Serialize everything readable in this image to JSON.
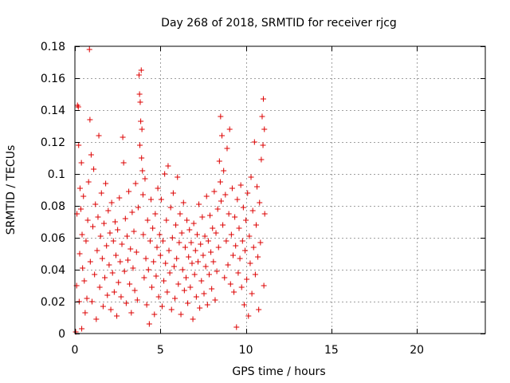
{
  "chart_data": {
    "type": "scatter",
    "title": "Day 268 of 2018, SRMTID for receiver rjcg",
    "xlabel": "GPS time / hours",
    "ylabel": "SRMTID / TECUs",
    "xlim": [
      0,
      24
    ],
    "ylim": [
      0,
      0.18
    ],
    "xticks": [
      0,
      5,
      10,
      15,
      20
    ],
    "xtick_labels": [
      "0",
      "5",
      "10",
      "15",
      "20"
    ],
    "yticks": [
      0,
      0.02,
      0.04,
      0.06,
      0.08,
      0.1,
      0.12,
      0.14,
      0.16,
      0.18
    ],
    "ytick_labels": [
      "0",
      "0.02",
      "0.04",
      "0.06",
      "0.08",
      "0.1",
      "0.12",
      "0.14",
      "0.16",
      "0.18"
    ],
    "grid": true,
    "marker": "+",
    "color": "#dd0000",
    "series": [
      {
        "name": "SRMTID",
        "points": [
          [
            0.05,
            0.001
          ],
          [
            0.1,
            0.03
          ],
          [
            0.12,
            0.075
          ],
          [
            0.15,
            0.143
          ],
          [
            0.2,
            0.142
          ],
          [
            0.22,
            0.118
          ],
          [
            0.25,
            0.02
          ],
          [
            0.28,
            0.05
          ],
          [
            0.3,
            0.091
          ],
          [
            0.35,
            0.078
          ],
          [
            0.38,
            0.107
          ],
          [
            0.4,
            0.003
          ],
          [
            0.42,
            0.062
          ],
          [
            0.45,
            0.041
          ],
          [
            0.5,
            0.086
          ],
          [
            0.55,
            0.033
          ],
          [
            0.6,
            0.013
          ],
          [
            0.65,
            0.058
          ],
          [
            0.7,
            0.022
          ],
          [
            0.75,
            0.071
          ],
          [
            0.8,
            0.095
          ],
          [
            0.85,
            0.178
          ],
          [
            0.88,
            0.134
          ],
          [
            0.9,
            0.045
          ],
          [
            0.95,
            0.112
          ],
          [
            1.0,
            0.02
          ],
          [
            1.05,
            0.067
          ],
          [
            1.1,
            0.103
          ],
          [
            1.15,
            0.037
          ],
          [
            1.2,
            0.081
          ],
          [
            1.25,
            0.009
          ],
          [
            1.3,
            0.052
          ],
          [
            1.35,
            0.073
          ],
          [
            1.4,
            0.124
          ],
          [
            1.45,
            0.029
          ],
          [
            1.5,
            0.061
          ],
          [
            1.55,
            0.088
          ],
          [
            1.6,
            0.047
          ],
          [
            1.65,
            0.017
          ],
          [
            1.7,
            0.069
          ],
          [
            1.75,
            0.035
          ],
          [
            1.8,
            0.094
          ],
          [
            1.85,
            0.055
          ],
          [
            1.9,
            0.024
          ],
          [
            1.95,
            0.077
          ],
          [
            2.0,
            0.043
          ],
          [
            2.05,
            0.063
          ],
          [
            2.1,
            0.015
          ],
          [
            2.15,
            0.082
          ],
          [
            2.2,
            0.038
          ],
          [
            2.25,
            0.058
          ],
          [
            2.3,
            0.026
          ],
          [
            2.35,
            0.07
          ],
          [
            2.4,
            0.049
          ],
          [
            2.45,
            0.011
          ],
          [
            2.5,
            0.065
          ],
          [
            2.55,
            0.032
          ],
          [
            2.6,
            0.085
          ],
          [
            2.65,
            0.045
          ],
          [
            2.7,
            0.023
          ],
          [
            2.75,
            0.056
          ],
          [
            2.8,
            0.123
          ],
          [
            2.85,
            0.107
          ],
          [
            2.9,
            0.039
          ],
          [
            2.95,
            0.072
          ],
          [
            3.0,
            0.019
          ],
          [
            3.05,
            0.061
          ],
          [
            3.1,
            0.046
          ],
          [
            3.15,
            0.089
          ],
          [
            3.2,
            0.031
          ],
          [
            3.25,
            0.053
          ],
          [
            3.3,
            0.013
          ],
          [
            3.35,
            0.076
          ],
          [
            3.4,
            0.041
          ],
          [
            3.45,
            0.064
          ],
          [
            3.5,
            0.027
          ],
          [
            3.55,
            0.094
          ],
          [
            3.6,
            0.051
          ],
          [
            3.65,
            0.021
          ],
          [
            3.7,
            0.079
          ],
          [
            3.75,
            0.162
          ],
          [
            3.78,
            0.15
          ],
          [
            3.8,
            0.118
          ],
          [
            3.82,
            0.145
          ],
          [
            3.85,
            0.133
          ],
          [
            3.88,
            0.165
          ],
          [
            3.9,
            0.11
          ],
          [
            3.92,
            0.128
          ],
          [
            3.95,
            0.102
          ],
          [
            3.98,
            0.087
          ],
          [
            4.0,
            0.062
          ],
          [
            4.05,
            0.035
          ],
          [
            4.1,
            0.097
          ],
          [
            4.15,
            0.047
          ],
          [
            4.2,
            0.018
          ],
          [
            4.25,
            0.071
          ],
          [
            4.3,
            0.04
          ],
          [
            4.35,
            0.006
          ],
          [
            4.4,
            0.058
          ],
          [
            4.45,
            0.084
          ],
          [
            4.5,
            0.029
          ],
          [
            4.55,
            0.066
          ],
          [
            4.6,
            0.045
          ],
          [
            4.65,
            0.012
          ],
          [
            4.7,
            0.075
          ],
          [
            4.75,
            0.036
          ],
          [
            4.8,
            0.054
          ],
          [
            4.85,
            0.091
          ],
          [
            4.9,
            0.023
          ],
          [
            4.95,
            0.062
          ],
          [
            5.0,
            0.049
          ],
          [
            5.05,
            0.084
          ],
          [
            5.1,
            0.017
          ],
          [
            5.15,
            0.058
          ],
          [
            5.2,
            0.033
          ],
          [
            5.25,
            0.1
          ],
          [
            5.3,
            0.044
          ],
          [
            5.35,
            0.071
          ],
          [
            5.4,
            0.026
          ],
          [
            5.45,
            0.105
          ],
          [
            5.5,
            0.052
          ],
          [
            5.55,
            0.038
          ],
          [
            5.6,
            0.079
          ],
          [
            5.65,
            0.015
          ],
          [
            5.7,
            0.06
          ],
          [
            5.75,
            0.088
          ],
          [
            5.8,
            0.042
          ],
          [
            5.85,
            0.022
          ],
          [
            5.9,
            0.068
          ],
          [
            5.95,
            0.047
          ],
          [
            6.0,
            0.098
          ],
          [
            6.05,
            0.031
          ],
          [
            6.1,
            0.057
          ],
          [
            6.15,
            0.075
          ],
          [
            6.2,
            0.012
          ],
          [
            6.25,
            0.063
          ],
          [
            6.3,
            0.04
          ],
          [
            6.35,
            0.082
          ],
          [
            6.4,
            0.027
          ],
          [
            6.45,
            0.054
          ],
          [
            6.5,
            0.035
          ],
          [
            6.55,
            0.071
          ],
          [
            6.6,
            0.019
          ],
          [
            6.65,
            0.048
          ],
          [
            6.7,
            0.065
          ],
          [
            6.75,
            0.029
          ],
          [
            6.8,
            0.057
          ],
          [
            6.85,
            0.044
          ],
          [
            6.9,
            0.009
          ],
          [
            6.95,
            0.069
          ],
          [
            7.0,
            0.037
          ],
          [
            7.05,
            0.052
          ],
          [
            7.1,
            0.023
          ],
          [
            7.15,
            0.062
          ],
          [
            7.2,
            0.045
          ],
          [
            7.25,
            0.081
          ],
          [
            7.3,
            0.016
          ],
          [
            7.35,
            0.056
          ],
          [
            7.4,
            0.033
          ],
          [
            7.45,
            0.073
          ],
          [
            7.5,
            0.049
          ],
          [
            7.55,
            0.025
          ],
          [
            7.6,
            0.061
          ],
          [
            7.65,
            0.042
          ],
          [
            7.7,
            0.086
          ],
          [
            7.75,
            0.018
          ],
          [
            7.8,
            0.058
          ],
          [
            7.85,
            0.037
          ],
          [
            7.9,
            0.074
          ],
          [
            7.95,
            0.051
          ],
          [
            8.0,
            0.028
          ],
          [
            8.05,
            0.066
          ],
          [
            8.1,
            0.045
          ],
          [
            8.15,
            0.089
          ],
          [
            8.2,
            0.021
          ],
          [
            8.25,
            0.063
          ],
          [
            8.3,
            0.039
          ],
          [
            8.35,
            0.078
          ],
          [
            8.4,
            0.054
          ],
          [
            8.45,
            0.108
          ],
          [
            8.5,
            0.095
          ],
          [
            8.52,
            0.136
          ],
          [
            8.55,
            0.083
          ],
          [
            8.6,
            0.124
          ],
          [
            8.65,
            0.068
          ],
          [
            8.7,
            0.102
          ],
          [
            8.75,
            0.035
          ],
          [
            8.8,
            0.087
          ],
          [
            8.85,
            0.058
          ],
          [
            8.9,
            0.116
          ],
          [
            8.95,
            0.043
          ],
          [
            9.0,
            0.075
          ],
          [
            9.05,
            0.128
          ],
          [
            9.1,
            0.031
          ],
          [
            9.15,
            0.062
          ],
          [
            9.2,
            0.091
          ],
          [
            9.25,
            0.049
          ],
          [
            9.3,
            0.026
          ],
          [
            9.35,
            0.073
          ],
          [
            9.4,
            0.055
          ],
          [
            9.45,
            0.004
          ],
          [
            9.5,
            0.084
          ],
          [
            9.55,
            0.038
          ],
          [
            9.6,
            0.066
          ],
          [
            9.65,
            0.047
          ],
          [
            9.7,
            0.093
          ],
          [
            9.75,
            0.029
          ],
          [
            9.8,
            0.058
          ],
          [
            9.85,
            0.079
          ],
          [
            9.9,
            0.018
          ],
          [
            9.95,
            0.052
          ],
          [
            10.0,
            0.071
          ],
          [
            10.05,
            0.034
          ],
          [
            10.1,
            0.088
          ],
          [
            10.15,
            0.011
          ],
          [
            10.2,
            0.061
          ],
          [
            10.25,
            0.044
          ],
          [
            10.3,
            0.098
          ],
          [
            10.35,
            0.025
          ],
          [
            10.4,
            0.077
          ],
          [
            10.45,
            0.054
          ],
          [
            10.5,
            0.12
          ],
          [
            10.55,
            0.037
          ],
          [
            10.6,
            0.068
          ],
          [
            10.65,
            0.092
          ],
          [
            10.7,
            0.048
          ],
          [
            10.75,
            0.015
          ],
          [
            10.8,
            0.082
          ],
          [
            10.85,
            0.057
          ],
          [
            10.9,
            0.109
          ],
          [
            10.95,
            0.136
          ],
          [
            11.0,
            0.118
          ],
          [
            11.02,
            0.147
          ],
          [
            11.05,
            0.03
          ],
          [
            11.08,
            0.128
          ],
          [
            11.1,
            0.075
          ]
        ]
      }
    ]
  }
}
